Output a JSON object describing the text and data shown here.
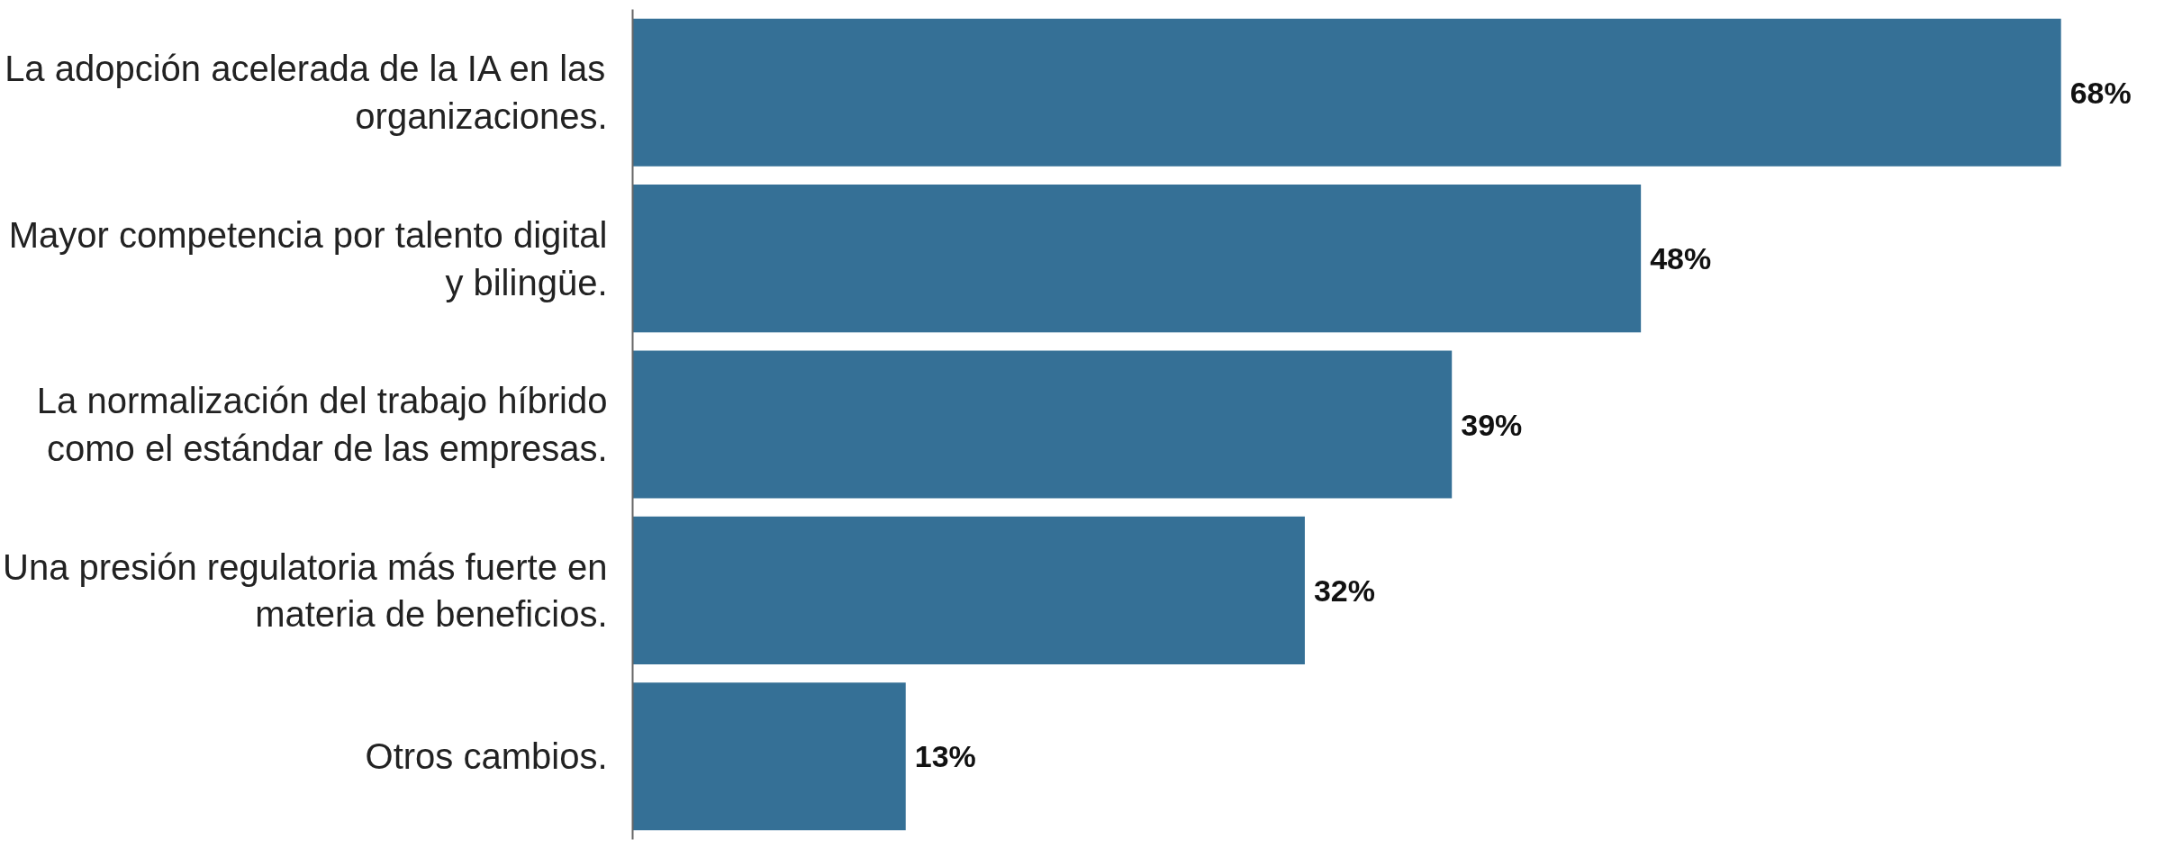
{
  "chart_data": {
    "type": "bar",
    "orientation": "horizontal",
    "categories": [
      "La adopción acelerada de la IA en las organizaciones.",
      "Mayor competencia por talento digital y bilingüe.",
      "La normalización del trabajo híbrido como el estándar de las empresas.",
      "Una presión regulatoria más fuerte en materia de beneficios.",
      "Otros cambios."
    ],
    "values": [
      68,
      48,
      39,
      32,
      13
    ],
    "value_labels": [
      "68%",
      "48%",
      "39%",
      "32%",
      "13%"
    ],
    "color": "#357096",
    "grid": false,
    "tick_labels": "y"
  }
}
